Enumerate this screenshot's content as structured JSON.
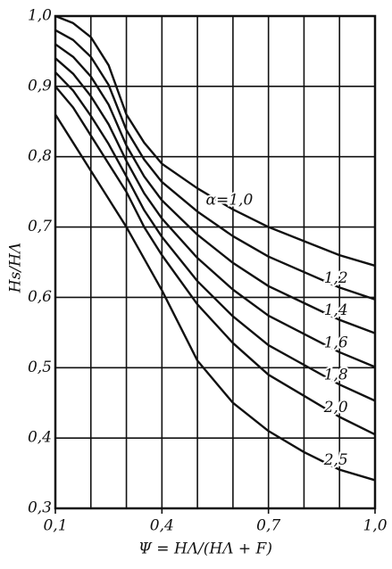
{
  "chart_data": {
    "type": "line",
    "x_label": "Ψ = HΛ/(HΛ + F)",
    "y_label": "Hs/HΛ",
    "xlim": [
      0.1,
      1.0
    ],
    "ylim": [
      0.3,
      1.0
    ],
    "xticks": [
      {
        "value": 0.1,
        "label": "0,1"
      },
      {
        "value": 0.4,
        "label": "0,4"
      },
      {
        "value": 0.7,
        "label": "0,7"
      },
      {
        "value": 1.0,
        "label": "1,0"
      }
    ],
    "xgrid": [
      0.1,
      0.2,
      0.3,
      0.4,
      0.5,
      0.6,
      0.7,
      0.8,
      0.9,
      1.0
    ],
    "yticks": [
      {
        "value": 0.3,
        "label": "0,3"
      },
      {
        "value": 0.4,
        "label": "0,4"
      },
      {
        "value": 0.5,
        "label": "0,5"
      },
      {
        "value": 0.6,
        "label": "0,6"
      },
      {
        "value": 0.7,
        "label": "0,7"
      },
      {
        "value": 0.8,
        "label": "0,8"
      },
      {
        "value": 0.9,
        "label": "0,9"
      },
      {
        "value": 1.0,
        "label": "1,0"
      }
    ],
    "grid": true,
    "color": "#111111",
    "x": [
      0.1,
      0.15,
      0.2,
      0.25,
      0.3,
      0.35,
      0.4,
      0.5,
      0.6,
      0.7,
      0.8,
      0.9,
      1.0
    ],
    "series": [
      {
        "name": "α=1,0",
        "values": [
          1.0,
          0.99,
          0.97,
          0.93,
          0.86,
          0.82,
          0.79,
          0.755,
          0.725,
          0.7,
          0.68,
          0.66,
          0.645
        ]
      },
      {
        "name": "1,2",
        "values": [
          0.98,
          0.966,
          0.942,
          0.902,
          0.838,
          0.796,
          0.764,
          0.722,
          0.687,
          0.658,
          0.636,
          0.614,
          0.597
        ]
      },
      {
        "name": "1,4",
        "values": [
          0.96,
          0.942,
          0.914,
          0.874,
          0.816,
          0.772,
          0.738,
          0.689,
          0.649,
          0.616,
          0.592,
          0.568,
          0.549
        ]
      },
      {
        "name": "1,6",
        "values": [
          0.94,
          0.918,
          0.886,
          0.846,
          0.794,
          0.748,
          0.712,
          0.656,
          0.611,
          0.574,
          0.548,
          0.522,
          0.501
        ]
      },
      {
        "name": "1,8",
        "values": [
          0.92,
          0.894,
          0.858,
          0.818,
          0.772,
          0.724,
          0.686,
          0.623,
          0.573,
          0.532,
          0.504,
          0.476,
          0.453
        ]
      },
      {
        "name": "2,0",
        "values": [
          0.9,
          0.87,
          0.83,
          0.79,
          0.75,
          0.7,
          0.66,
          0.59,
          0.535,
          0.49,
          0.46,
          0.43,
          0.405
        ]
      },
      {
        "name": "2,5",
        "values": [
          0.86,
          0.82,
          0.78,
          0.74,
          0.7,
          0.655,
          0.61,
          0.51,
          0.45,
          0.41,
          0.38,
          0.355,
          0.34
        ]
      }
    ]
  }
}
